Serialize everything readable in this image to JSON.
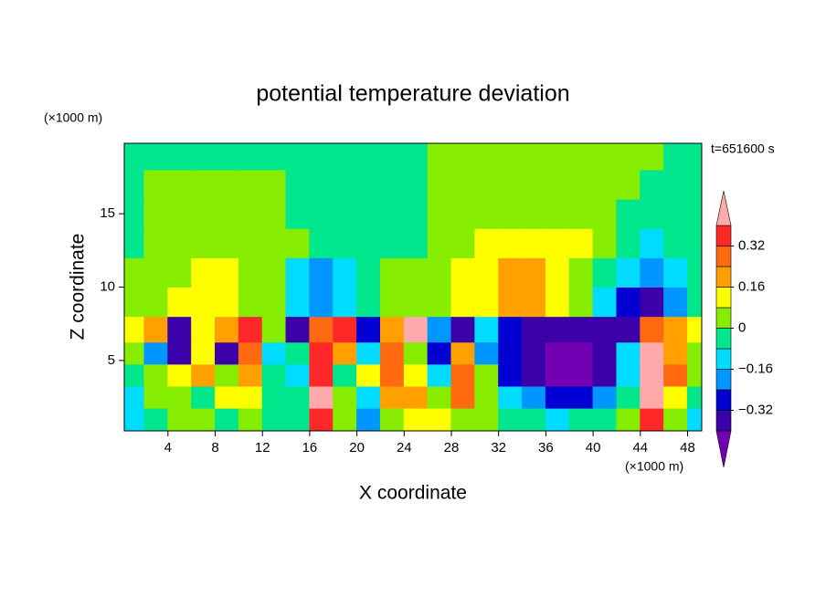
{
  "chart_data": {
    "type": "contour",
    "title": "potential temperature deviation",
    "xlabel": "X coordinate",
    "ylabel": "Z coordinate",
    "xunit": "(×1000 m)",
    "yunit": "(×1000 m)",
    "annotation": "t=651600 s",
    "xlim": [
      0.3,
      49.2
    ],
    "ylim": [
      0.2,
      19.8
    ],
    "xticks": [
      4,
      8,
      12,
      16,
      20,
      24,
      28,
      32,
      36,
      40,
      44,
      48
    ],
    "yticks": [
      5,
      10,
      15
    ],
    "x": [
      1,
      3,
      5,
      7,
      9,
      11,
      13,
      15,
      17,
      19,
      21,
      23,
      25,
      27,
      29,
      31,
      33,
      35,
      37,
      39,
      41,
      43,
      45,
      47,
      49
    ],
    "y": [
      1,
      2.5,
      4,
      5.5,
      7,
      9,
      11,
      13,
      15,
      17,
      19
    ],
    "values": [
      [
        -0.12,
        -0.04,
        0.04,
        0.04,
        -0.04,
        0.04,
        -0.04,
        -0.04,
        0.36,
        0.04,
        -0.2,
        0.04,
        0.12,
        0.12,
        0.04,
        0.04,
        -0.04,
        -0.04,
        -0.12,
        -0.04,
        -0.04,
        0.04,
        0.36,
        0.04,
        -0.12
      ],
      [
        -0.12,
        0.04,
        0.04,
        -0.04,
        0.12,
        0.12,
        -0.04,
        -0.04,
        0.45,
        0.04,
        -0.12,
        0.2,
        0.2,
        0.04,
        0.28,
        0.04,
        -0.12,
        -0.2,
        -0.28,
        -0.28,
        -0.2,
        -0.04,
        0.45,
        0.12,
        -0.04
      ],
      [
        -0.04,
        0.04,
        0.12,
        0.2,
        0.04,
        0.2,
        -0.04,
        -0.12,
        0.36,
        -0.04,
        0.12,
        0.28,
        0.12,
        -0.12,
        0.28,
        0.04,
        -0.28,
        -0.36,
        -0.45,
        -0.45,
        -0.36,
        -0.12,
        0.45,
        0.28,
        0.04
      ],
      [
        0.04,
        -0.2,
        -0.36,
        0.12,
        -0.36,
        0.28,
        -0.12,
        -0.04,
        0.36,
        0.2,
        -0.12,
        0.28,
        0.04,
        -0.28,
        0.2,
        -0.2,
        -0.28,
        -0.36,
        -0.45,
        -0.45,
        -0.36,
        -0.12,
        0.45,
        0.2,
        0.04
      ],
      [
        0.12,
        0.2,
        -0.36,
        0.12,
        0.2,
        0.36,
        0.04,
        -0.36,
        0.28,
        0.36,
        -0.28,
        0.2,
        0.45,
        -0.2,
        -0.36,
        -0.12,
        -0.28,
        -0.36,
        -0.36,
        -0.36,
        -0.36,
        -0.36,
        0.28,
        0.2,
        0.12
      ],
      [
        0.04,
        0.04,
        0.12,
        0.12,
        0.12,
        0.04,
        0.04,
        -0.12,
        -0.2,
        -0.12,
        -0.04,
        0.04,
        0.04,
        0.04,
        0.12,
        0.12,
        0.2,
        0.2,
        0.12,
        0.04,
        -0.12,
        -0.28,
        -0.36,
        -0.2,
        -0.04
      ],
      [
        0.04,
        0.04,
        0.04,
        0.12,
        0.12,
        0.04,
        0.04,
        -0.12,
        -0.2,
        -0.12,
        -0.04,
        0.04,
        0.04,
        0.04,
        0.12,
        0.12,
        0.2,
        0.2,
        0.12,
        0.04,
        -0.04,
        -0.12,
        -0.2,
        -0.12,
        -0.04
      ],
      [
        -0.04,
        0.04,
        0.04,
        0.04,
        0.04,
        0.04,
        0.04,
        0.04,
        -0.04,
        -0.04,
        -0.04,
        -0.04,
        -0.04,
        0.04,
        0.04,
        0.12,
        0.12,
        0.12,
        0.12,
        0.12,
        0.04,
        -0.04,
        -0.12,
        -0.04,
        -0.04
      ],
      [
        -0.04,
        0.04,
        0.04,
        0.04,
        0.04,
        0.04,
        0.04,
        -0.04,
        -0.04,
        -0.04,
        -0.04,
        -0.04,
        -0.04,
        0.04,
        0.04,
        0.04,
        0.04,
        0.04,
        0.04,
        0.04,
        0.04,
        -0.04,
        -0.04,
        -0.04,
        -0.04
      ],
      [
        -0.04,
        0.04,
        0.04,
        0.04,
        0.04,
        0.04,
        0.04,
        -0.04,
        -0.04,
        -0.04,
        -0.04,
        -0.04,
        -0.04,
        0.04,
        0.04,
        0.04,
        0.04,
        0.04,
        0.04,
        0.04,
        0.04,
        0.04,
        -0.04,
        -0.04,
        -0.04
      ],
      [
        -0.04,
        -0.04,
        -0.04,
        -0.04,
        -0.04,
        -0.04,
        -0.04,
        -0.04,
        -0.04,
        -0.04,
        -0.04,
        -0.04,
        -0.04,
        0.04,
        0.04,
        0.04,
        0.04,
        0.04,
        0.04,
        0.04,
        0.04,
        0.04,
        0.04,
        -0.04,
        -0.04
      ]
    ],
    "colorbar": {
      "levels": [
        -0.4,
        -0.32,
        -0.24,
        -0.16,
        -0.08,
        0,
        0.08,
        0.16,
        0.24,
        0.32,
        0.4
      ],
      "colors": [
        "#7400b4",
        "#3c00a8",
        "#0000d2",
        "#0096ff",
        "#00dcff",
        "#00e68c",
        "#86ec00",
        "#ffff00",
        "#ffa000",
        "#ff6a10",
        "#ff2828",
        "#ffaaaa"
      ],
      "ticks": [
        0.32,
        0.16,
        0,
        {
          "value": -0.16,
          "label": "−0.16"
        },
        {
          "value": -0.32,
          "label": "−0.32"
        }
      ]
    }
  }
}
